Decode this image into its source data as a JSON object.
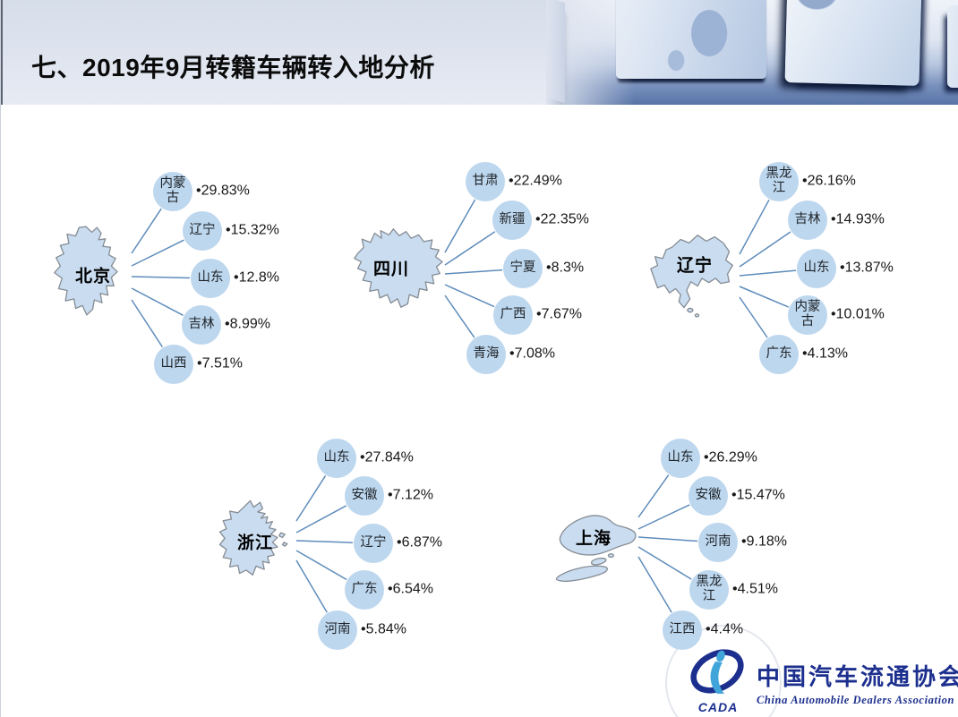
{
  "slide": {
    "title": "七、2019年9月转籍车辆转入地分析"
  },
  "clusters": [
    {
      "source": "北京",
      "nodes": [
        {
          "label": "内蒙古",
          "value": "•29.83%"
        },
        {
          "label": "辽宁",
          "value": "•15.32%"
        },
        {
          "label": "山东",
          "value": "•12.8%"
        },
        {
          "label": "吉林",
          "value": "•8.99%"
        },
        {
          "label": "山西",
          "value": "•7.51%"
        }
      ]
    },
    {
      "source": "四川",
      "nodes": [
        {
          "label": "甘肃",
          "value": "•22.49%"
        },
        {
          "label": "新疆",
          "value": "•22.35%"
        },
        {
          "label": "宁夏",
          "value": "•8.3%"
        },
        {
          "label": "广西",
          "value": "•7.67%"
        },
        {
          "label": "青海",
          "value": "•7.08%"
        }
      ]
    },
    {
      "source": "辽宁",
      "nodes": [
        {
          "label": "黑龙江",
          "value": "•26.16%"
        },
        {
          "label": "吉林",
          "value": "•14.93%"
        },
        {
          "label": "山东",
          "value": "•13.87%"
        },
        {
          "label": "内蒙古",
          "value": "•10.01%"
        },
        {
          "label": "广东",
          "value": "•4.13%"
        }
      ]
    },
    {
      "source": "浙江",
      "nodes": [
        {
          "label": "山东",
          "value": "•27.84%"
        },
        {
          "label": "安徽",
          "value": "•7.12%"
        },
        {
          "label": "辽宁",
          "value": "•6.87%"
        },
        {
          "label": "广东",
          "value": "•6.54%"
        },
        {
          "label": "河南",
          "value": "•5.84%"
        }
      ]
    },
    {
      "source": "上海",
      "nodes": [
        {
          "label": "山东",
          "value": "•26.29%"
        },
        {
          "label": "安徽",
          "value": "•15.47%"
        },
        {
          "label": "河南",
          "value": "•9.18%"
        },
        {
          "label": "黑龙江",
          "value": "•4.51%"
        },
        {
          "label": "江西",
          "value": "•4.4%"
        }
      ]
    }
  ],
  "footer_logo": {
    "acronym": "CADA",
    "name_cn": "中国汽车流通协会",
    "name_en": "China Automobile Dealers Association"
  },
  "colors": {
    "bubble_fill": "#bdd7ee",
    "map_fill": "#c9dcf0",
    "map_border": "#858c94",
    "connector_line": "#5e8cbb",
    "logo_navy": "#1c2f8e",
    "logo_light_blue": "#41a5da"
  },
  "chart_data": [
    {
      "type": "table",
      "title": "北京",
      "unit": "%",
      "categories": [
        "内蒙古",
        "辽宁",
        "山东",
        "吉林",
        "山西"
      ],
      "values": [
        29.83,
        15.32,
        12.8,
        8.99,
        7.51
      ]
    },
    {
      "type": "table",
      "title": "四川",
      "unit": "%",
      "categories": [
        "甘肃",
        "新疆",
        "宁夏",
        "广西",
        "青海"
      ],
      "values": [
        22.49,
        22.35,
        8.3,
        7.67,
        7.08
      ]
    },
    {
      "type": "table",
      "title": "辽宁",
      "unit": "%",
      "categories": [
        "黑龙江",
        "吉林",
        "山东",
        "内蒙古",
        "广东"
      ],
      "values": [
        26.16,
        14.93,
        13.87,
        10.01,
        4.13
      ]
    },
    {
      "type": "table",
      "title": "浙江",
      "unit": "%",
      "categories": [
        "山东",
        "安徽",
        "辽宁",
        "广东",
        "河南"
      ],
      "values": [
        27.84,
        7.12,
        6.87,
        6.54,
        5.84
      ]
    },
    {
      "type": "table",
      "title": "上海",
      "unit": "%",
      "categories": [
        "山东",
        "安徽",
        "河南",
        "黑龙江",
        "江西"
      ],
      "values": [
        26.29,
        15.47,
        9.18,
        4.51,
        4.4
      ]
    }
  ]
}
